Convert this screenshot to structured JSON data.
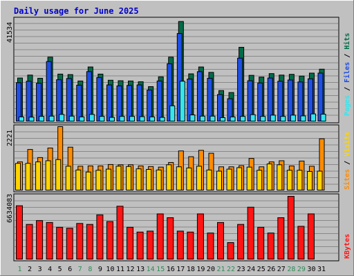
{
  "colors": {
    "background": "#c0c0c0",
    "title": "#0000cc",
    "hits": "#006b47",
    "files": "#1e4fe6",
    "pages": "#33e6f0",
    "visits": "#ffd400",
    "sites": "#ff8c00",
    "kbytes": "#ff1414",
    "weekend_label": "#2e8b57",
    "weekday_label": "#000000"
  },
  "chart_data": [
    {
      "id": "hits-files-pages",
      "type": "bar",
      "title": "Daily usage for June 2025",
      "y_tick_label": "41534",
      "ylim": [
        0,
        41534
      ],
      "legend": [
        "Pages",
        "Files",
        "Hits"
      ],
      "categories": [
        "1",
        "2",
        "3",
        "4",
        "5",
        "6",
        "7",
        "8",
        "9",
        "10",
        "11",
        "12",
        "13",
        "14",
        "15",
        "16",
        "17",
        "18",
        "19",
        "20",
        "21",
        "22",
        "23",
        "24",
        "25",
        "26",
        "27",
        "28",
        "29",
        "30",
        "31"
      ],
      "series": [
        {
          "name": "Hits",
          "values": [
            17800,
            19000,
            17700,
            26300,
            19400,
            19200,
            16600,
            22300,
            19400,
            16900,
            16700,
            16600,
            16300,
            14300,
            18300,
            26300,
            40800,
            19500,
            22300,
            20100,
            12700,
            11900,
            30300,
            18900,
            18200,
            19600,
            19000,
            19300,
            18600,
            19800,
            21400
          ]
        },
        {
          "name": "Files",
          "values": [
            15900,
            16500,
            15700,
            24500,
            17100,
            17600,
            14900,
            20400,
            18000,
            15000,
            14600,
            14800,
            15000,
            12900,
            16600,
            23600,
            35900,
            17400,
            20400,
            17700,
            11100,
            9400,
            25900,
            16700,
            15800,
            17800,
            16500,
            17000,
            16200,
            17500,
            19800
          ]
        },
        {
          "name": "Pages",
          "values": [
            2000,
            1900,
            2200,
            2300,
            3000,
            2300,
            2000,
            3000,
            2200,
            1800,
            2200,
            2200,
            2100,
            2000,
            1800,
            6500,
            16500,
            2800,
            2300,
            2300,
            1700,
            2000,
            2200,
            2900,
            2200,
            2700,
            2200,
            2700,
            2400,
            3200,
            3100
          ]
        }
      ]
    },
    {
      "id": "visits-sites",
      "type": "bar",
      "y_tick_label": "2221",
      "ylim": [
        0,
        2221
      ],
      "legend": [
        "Sites",
        "Visits"
      ],
      "categories": [
        "1",
        "2",
        "3",
        "4",
        "5",
        "6",
        "7",
        "8",
        "9",
        "10",
        "11",
        "12",
        "13",
        "14",
        "15",
        "16",
        "17",
        "18",
        "19",
        "20",
        "21",
        "22",
        "23",
        "24",
        "25",
        "26",
        "27",
        "28",
        "29",
        "30",
        "31"
      ],
      "series": [
        {
          "name": "Visits",
          "values": [
            950,
            950,
            1000,
            1040,
            1080,
            850,
            720,
            650,
            710,
            750,
            850,
            840,
            760,
            740,
            720,
            900,
            830,
            790,
            850,
            720,
            680,
            750,
            800,
            820,
            710,
            930,
            900,
            710,
            710,
            670,
            680
          ]
        },
        {
          "name": "Sites",
          "values": [
            1000,
            1430,
            1150,
            1480,
            2221,
            1510,
            850,
            860,
            860,
            910,
            900,
            900,
            860,
            840,
            820,
            980,
            1380,
            1180,
            1400,
            1300,
            830,
            830,
            870,
            1120,
            830,
            1000,
            1040,
            860,
            1030,
            850,
            1800
          ]
        }
      ]
    },
    {
      "id": "kbytes",
      "type": "bar",
      "y_tick_label": "6634083",
      "ylim": [
        0,
        6634083
      ],
      "legend": [
        "KBytes"
      ],
      "categories": [
        "1",
        "2",
        "3",
        "4",
        "5",
        "6",
        "7",
        "8",
        "9",
        "10",
        "11",
        "12",
        "13",
        "14",
        "15",
        "16",
        "17",
        "18",
        "19",
        "20",
        "21",
        "22",
        "23",
        "24",
        "25",
        "26",
        "27",
        "28",
        "29",
        "30",
        "31"
      ],
      "series": [
        {
          "name": "KBytes",
          "values": [
            5650000,
            3700000,
            4100000,
            3900000,
            3400000,
            3300000,
            3800000,
            3700000,
            4700000,
            4000000,
            5600000,
            3400000,
            2900000,
            3000000,
            4800000,
            4400000,
            3000000,
            2900000,
            4800000,
            2800000,
            3900000,
            1800000,
            3700000,
            5500000,
            3400000,
            2800000,
            4400000,
            6634083,
            3500000,
            4800000,
            0
          ]
        }
      ]
    }
  ]
}
